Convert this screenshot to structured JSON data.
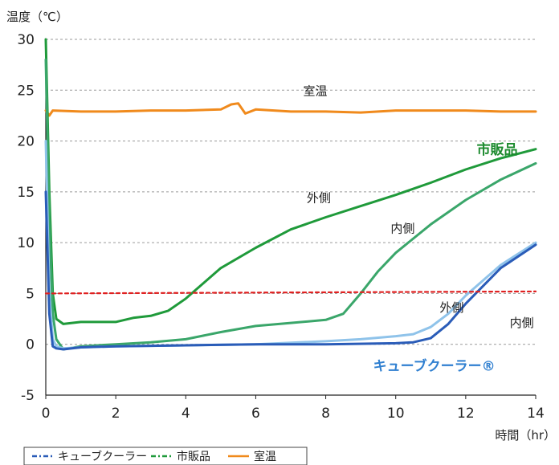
{
  "chart_data": {
    "type": "line",
    "ylabel": "温度（℃）",
    "xlabel": "時間（hr）",
    "xlim": [
      0,
      14
    ],
    "ylim": [
      -5,
      30
    ],
    "x_ticks": [
      0,
      2,
      4,
      6,
      8,
      10,
      12,
      14
    ],
    "y_ticks": [
      -5,
      0,
      5,
      10,
      15,
      20,
      25,
      30
    ],
    "x_tick_labels": [
      "0",
      "2",
      "4",
      "6",
      "8",
      "10",
      "12",
      "14"
    ],
    "y_tick_labels": [
      "-5",
      "0",
      "5",
      "10",
      "15",
      "20",
      "25",
      "30"
    ],
    "grid": "horizontal dashed",
    "legend_position": "bottom-left",
    "series": [
      {
        "name": "室温",
        "color": "#f08a1c",
        "style": "solid",
        "x": [
          0,
          0.1,
          0.2,
          1,
          2,
          3,
          4,
          5,
          5.3,
          5.5,
          5.7,
          6,
          7,
          8,
          9,
          10,
          11,
          12,
          13,
          14
        ],
        "y": [
          23,
          22.5,
          23,
          22.9,
          22.9,
          23,
          23,
          23.1,
          23.6,
          23.7,
          22.7,
          23.1,
          22.9,
          22.9,
          22.8,
          23,
          23,
          23,
          22.9,
          22.9
        ]
      },
      {
        "name": "市販品",
        "label": "外側",
        "color": "#1f9a3a",
        "style": "solid",
        "x": [
          0,
          0.1,
          0.2,
          0.3,
          0.5,
          1,
          2,
          2.5,
          3,
          3.5,
          4,
          4.5,
          5,
          6,
          7,
          8,
          9,
          10,
          11,
          12,
          13,
          14
        ],
        "y": [
          30,
          15,
          5,
          2.5,
          2,
          2.2,
          2.2,
          2.6,
          2.8,
          3.3,
          4.5,
          6,
          7.5,
          9.5,
          11.3,
          12.5,
          13.6,
          14.7,
          15.9,
          17.2,
          18.3,
          19.2
        ]
      },
      {
        "name": "市販品",
        "label": "内側",
        "color": "#3aa66a",
        "style": "solid",
        "x": [
          0,
          0.1,
          0.2,
          0.3,
          0.5,
          1,
          2,
          3,
          4,
          5,
          6,
          7,
          8,
          8.5,
          9,
          9.5,
          10,
          11,
          12,
          13,
          14
        ],
        "y": [
          28,
          12,
          3,
          0.5,
          -0.5,
          -0.2,
          0,
          0.2,
          0.5,
          1.2,
          1.8,
          2.1,
          2.4,
          3,
          5,
          7.2,
          9,
          11.8,
          14.2,
          16.2,
          17.8
        ]
      },
      {
        "name": "キューブクーラー",
        "label": "外側",
        "color": "#8fc3ea",
        "style": "solid",
        "x": [
          0,
          0.1,
          0.2,
          0.3,
          0.5,
          1,
          2,
          4,
          6,
          8,
          9,
          10,
          10.5,
          11,
          11.5,
          12,
          13,
          14
        ],
        "y": [
          20,
          5,
          0.5,
          -0.2,
          -0.4,
          -0.3,
          -0.2,
          -0.1,
          0,
          0.3,
          0.5,
          0.8,
          1,
          1.7,
          3,
          4.8,
          7.8,
          10
        ]
      },
      {
        "name": "キューブクーラー",
        "label": "内側",
        "color": "#2a5cb8",
        "style": "solid",
        "x": [
          0,
          0.1,
          0.2,
          0.3,
          0.5,
          1,
          2,
          4,
          6,
          8,
          10,
          10.5,
          11,
          11.5,
          12,
          13,
          14
        ],
        "y": [
          15,
          3,
          -0.2,
          -0.4,
          -0.5,
          -0.3,
          -0.2,
          -0.1,
          0,
          0,
          0.1,
          0.2,
          0.6,
          2,
          4,
          7.5,
          9.8
        ]
      },
      {
        "name": "5℃ reference",
        "color": "#e02020",
        "style": "dotted",
        "x": [
          0,
          14
        ],
        "y": [
          5,
          5.2
        ]
      }
    ],
    "annotations": [
      {
        "text": "室温",
        "x": 7.7,
        "y": 24.5,
        "class": "anno"
      },
      {
        "text": "市販品",
        "x": 12.9,
        "y": 18.7,
        "class": "anno-green"
      },
      {
        "text": "外側",
        "x": 7.8,
        "y": 14,
        "class": "anno"
      },
      {
        "text": "内側",
        "x": 10.2,
        "y": 11,
        "class": "anno"
      },
      {
        "text": "外側",
        "x": 11.6,
        "y": 3.2,
        "class": "anno"
      },
      {
        "text": "内側",
        "x": 13.6,
        "y": 1.7,
        "class": "anno"
      },
      {
        "text": "キューブクーラー®",
        "x": 11.1,
        "y": -2.6,
        "class": "anno-blue"
      }
    ],
    "legend": [
      {
        "label": "キューブクーラー",
        "color": "#2a5cb8",
        "dash": "dashdot"
      },
      {
        "label": "市販品",
        "color": "#1f9a3a",
        "dash": "dashdot"
      },
      {
        "label": "室温",
        "color": "#f08a1c",
        "dash": "solid"
      }
    ]
  }
}
